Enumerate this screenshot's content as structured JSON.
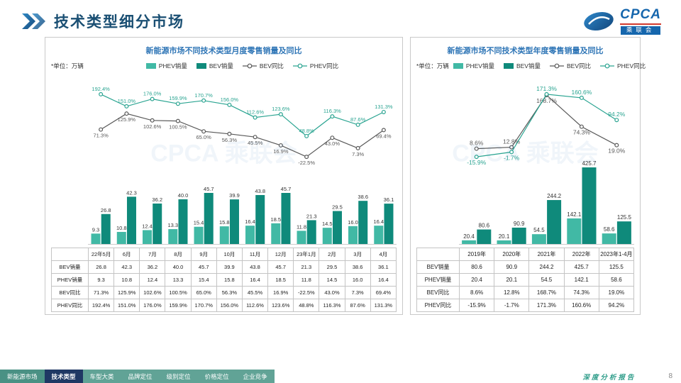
{
  "header": {
    "title": "技术类型细分市场"
  },
  "logo": {
    "brand": "CPCA",
    "org": "乘联会"
  },
  "watermark": {
    "line1": "CPCA",
    "line2": "乘联会"
  },
  "chart_data": [
    {
      "type": "bar",
      "subtype": "combo-bar-line",
      "title": "新能源市场不同技术类型月度零售销量及同比",
      "unit_note": "*单位：万辆",
      "legend": [
        "PHEV销量",
        "BEV销量",
        "BEV同比",
        "PHEV同比"
      ],
      "categories": [
        "22年5月",
        "6月",
        "7月",
        "8月",
        "9月",
        "10月",
        "11月",
        "12月",
        "23年1月",
        "2月",
        "3月",
        "4月"
      ],
      "bar_series": [
        {
          "name": "PHEV销量",
          "color": "#41b9a5",
          "values": [
            9.3,
            10.8,
            12.4,
            13.3,
            15.4,
            15.8,
            16.4,
            18.5,
            11.8,
            14.5,
            16.0,
            16.4
          ]
        },
        {
          "name": "BEV销量",
          "color": "#0f8a7b",
          "values": [
            26.8,
            42.3,
            36.2,
            40.0,
            45.7,
            39.9,
            43.8,
            45.7,
            21.3,
            29.5,
            38.6,
            36.1
          ]
        }
      ],
      "line_series": [
        {
          "name": "BEV同比",
          "color": "#595959",
          "values_pct": [
            71.3,
            125.9,
            102.6,
            100.5,
            65.0,
            56.3,
            45.5,
            16.9,
            -22.5,
            43.0,
            7.3,
            69.4
          ]
        },
        {
          "name": "PHEV同比",
          "color": "#2aa491",
          "values_pct": [
            192.4,
            151.0,
            176.0,
            159.9,
            170.7,
            156.0,
            112.6,
            123.6,
            48.8,
            116.3,
            87.6,
            131.3
          ]
        }
      ],
      "table_order": [
        "BEV销量",
        "PHEV销量",
        "BEV同比",
        "PHEV同比"
      ]
    },
    {
      "type": "bar",
      "subtype": "combo-bar-line",
      "title": "新能源市场不同技术类型年度零售销量及同比",
      "unit_note": "*单位：万辆",
      "legend": [
        "PHEV销量",
        "BEV销量",
        "BEV同比",
        "PHEV同比"
      ],
      "categories": [
        "2019年",
        "2020年",
        "2021年",
        "2022年",
        "2023年1-4月"
      ],
      "bar_series": [
        {
          "name": "PHEV销量",
          "color": "#41b9a5",
          "values": [
            20.4,
            20.1,
            54.5,
            142.1,
            58.6
          ]
        },
        {
          "name": "BEV销量",
          "color": "#0f8a7b",
          "values": [
            80.6,
            90.9,
            244.2,
            425.7,
            125.5
          ]
        }
      ],
      "line_series": [
        {
          "name": "BEV同比",
          "color": "#595959",
          "values_pct": [
            8.6,
            12.8,
            168.7,
            74.3,
            19.0
          ]
        },
        {
          "name": "PHEV同比",
          "color": "#2aa491",
          "values_pct": [
            -15.9,
            -1.7,
            171.3,
            160.6,
            94.2
          ]
        }
      ],
      "table_order": [
        "BEV销量",
        "PHEV销量",
        "BEV同比",
        "PHEV同比"
      ]
    }
  ],
  "footer": {
    "tabs": [
      {
        "label": "新能源市场",
        "active": false
      },
      {
        "label": "技术类型",
        "active": true
      },
      {
        "label": "车型大类",
        "active": false
      },
      {
        "label": "品牌定位",
        "active": false
      },
      {
        "label": "级别定位",
        "active": false
      },
      {
        "label": "价格定位",
        "active": false
      },
      {
        "label": "企业竞争",
        "active": false
      }
    ],
    "report_label": "深度分析报告",
    "page_number": "8"
  }
}
